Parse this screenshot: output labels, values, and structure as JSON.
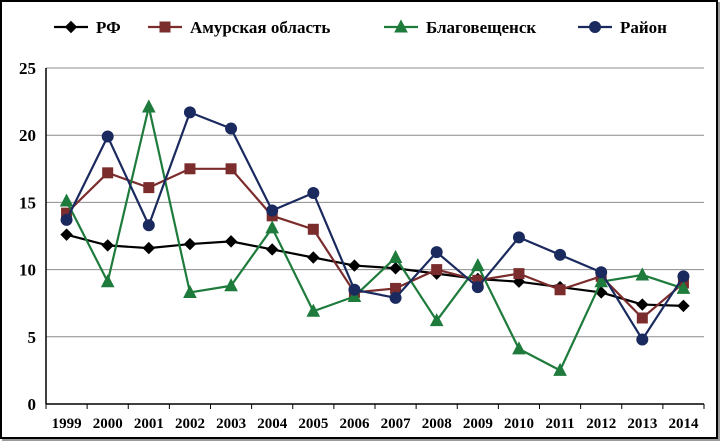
{
  "chart_data": {
    "type": "line",
    "title": "",
    "xlabel": "",
    "ylabel": "",
    "x": [
      "1999",
      "2000",
      "2001",
      "2002",
      "2003",
      "2004",
      "2005",
      "2006",
      "2007",
      "2008",
      "2009",
      "2010",
      "2011",
      "2012",
      "2013",
      "2014"
    ],
    "ylim": [
      0,
      25
    ],
    "yticks": [
      "0",
      "5",
      "10",
      "15",
      "20",
      "25"
    ],
    "grid": "horizontal",
    "legend_position": "top",
    "series": [
      {
        "name": "РФ",
        "color": "#000000",
        "marker": "diamond",
        "values": [
          12.6,
          11.8,
          11.6,
          11.9,
          12.1,
          11.5,
          10.9,
          10.3,
          10.1,
          9.7,
          9.3,
          9.1,
          8.7,
          8.3,
          7.4,
          7.3
        ]
      },
      {
        "name": "Амурская область",
        "color": "#7b2c2c",
        "marker": "square",
        "values": [
          14.2,
          17.2,
          16.1,
          17.5,
          17.5,
          14.0,
          13.0,
          8.3,
          8.6,
          10.0,
          9.2,
          9.7,
          8.5,
          9.5,
          6.4,
          9.0
        ]
      },
      {
        "name": "Благовещенск",
        "color": "#1e7b3c",
        "marker": "triangle",
        "values": [
          15.1,
          9.1,
          22.1,
          8.3,
          8.8,
          13.1,
          6.9,
          8.0,
          10.9,
          6.2,
          10.3,
          4.1,
          2.5,
          9.1,
          9.6,
          8.6
        ]
      },
      {
        "name": "Район",
        "color": "#1b2a5e",
        "marker": "circle",
        "values": [
          13.7,
          19.9,
          13.3,
          21.7,
          20.5,
          14.4,
          15.7,
          8.5,
          7.9,
          11.3,
          8.7,
          12.4,
          11.1,
          9.8,
          4.8,
          9.5
        ]
      }
    ]
  }
}
